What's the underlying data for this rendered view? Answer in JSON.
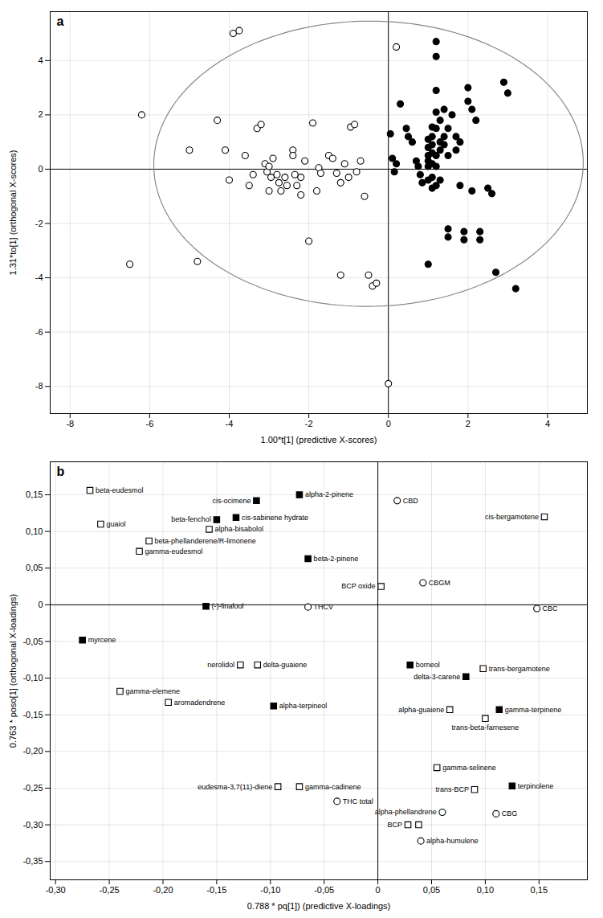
{
  "chart_data": [
    {
      "type": "scatter",
      "title": "a",
      "xlabel": "1.00*t[1] (predictive X-scores)",
      "ylabel": "1.31*to[1] (orthogonal X-scores)",
      "xlim": [
        -8.5,
        5.0
      ],
      "ylim": [
        -9.0,
        5.8
      ],
      "xticks": [
        -8,
        -6,
        -4,
        -2,
        0,
        2,
        4
      ],
      "yticks": [
        -8,
        -6,
        -4,
        -2,
        0,
        2,
        4
      ],
      "grid": true,
      "ellipse": {
        "cx": -0.5,
        "cy": 0.2,
        "width": 10.8,
        "height": 10.5,
        "angle": 8,
        "color": "#888888"
      },
      "series": [
        {
          "marker": "open_circle",
          "color": "black",
          "points": [
            [
              -6.5,
              -3.5
            ],
            [
              -6.2,
              2.0
            ],
            [
              -5.0,
              0.7
            ],
            [
              -4.8,
              -3.4
            ],
            [
              -4.3,
              1.8
            ],
            [
              -4.1,
              0.7
            ],
            [
              -4.0,
              -0.4
            ],
            [
              -3.9,
              5.0
            ],
            [
              -3.75,
              5.1
            ],
            [
              -3.6,
              0.5
            ],
            [
              -3.5,
              -0.6
            ],
            [
              -3.4,
              -0.2
            ],
            [
              -3.3,
              1.5
            ],
            [
              -3.2,
              1.65
            ],
            [
              -3.1,
              0.2
            ],
            [
              -3.05,
              -0.1
            ],
            [
              -3.0,
              -0.8
            ],
            [
              -3.0,
              0.1
            ],
            [
              -2.95,
              -0.3
            ],
            [
              -2.9,
              0.4
            ],
            [
              -2.8,
              -0.2
            ],
            [
              -2.75,
              -0.5
            ],
            [
              -2.7,
              -0.8
            ],
            [
              -2.6,
              -0.3
            ],
            [
              -2.55,
              -0.6
            ],
            [
              -2.4,
              0.7
            ],
            [
              -2.4,
              0.5
            ],
            [
              -2.35,
              -0.2
            ],
            [
              -2.3,
              -0.6
            ],
            [
              -2.2,
              -0.3
            ],
            [
              -2.2,
              -0.95
            ],
            [
              -2.1,
              0.3
            ],
            [
              -2.0,
              -2.65
            ],
            [
              -1.9,
              1.7
            ],
            [
              -1.8,
              -0.8
            ],
            [
              -1.75,
              0.05
            ],
            [
              -1.7,
              -0.15
            ],
            [
              -1.5,
              0.5
            ],
            [
              -1.4,
              0.4
            ],
            [
              -1.3,
              -0.15
            ],
            [
              -1.2,
              -0.5
            ],
            [
              -1.2,
              -3.9
            ],
            [
              -1.1,
              0.2
            ],
            [
              -1.0,
              -0.3
            ],
            [
              -0.95,
              1.55
            ],
            [
              -0.85,
              1.65
            ],
            [
              -0.8,
              -0.1
            ],
            [
              -0.7,
              0.3
            ],
            [
              -0.6,
              -1.0
            ],
            [
              -0.5,
              -3.9
            ],
            [
              -0.4,
              -4.3
            ],
            [
              -0.3,
              -4.2
            ],
            [
              0.0,
              -7.9
            ],
            [
              0.2,
              4.5
            ]
          ]
        },
        {
          "marker": "filled_circle",
          "color": "black",
          "points": [
            [
              0.05,
              1.3
            ],
            [
              0.1,
              0.4
            ],
            [
              0.15,
              -0.1
            ],
            [
              0.2,
              0.2
            ],
            [
              0.3,
              2.4
            ],
            [
              0.45,
              1.5
            ],
            [
              0.5,
              1.2
            ],
            [
              0.6,
              1.0
            ],
            [
              0.7,
              0.3
            ],
            [
              0.75,
              0.1
            ],
            [
              0.8,
              -0.2
            ],
            [
              0.85,
              -0.5
            ],
            [
              1.0,
              1.1
            ],
            [
              1.0,
              0.8
            ],
            [
              1.0,
              0.5
            ],
            [
              1.0,
              0.3
            ],
            [
              1.0,
              0.1
            ],
            [
              1.0,
              -0.4
            ],
            [
              1.0,
              -3.5
            ],
            [
              1.1,
              1.55
            ],
            [
              1.1,
              1.2
            ],
            [
              1.1,
              0.9
            ],
            [
              1.1,
              0.6
            ],
            [
              1.1,
              0.2
            ],
            [
              1.1,
              -0.3
            ],
            [
              1.1,
              -0.7
            ],
            [
              1.2,
              4.7
            ],
            [
              1.2,
              4.15
            ],
            [
              1.2,
              2.9
            ],
            [
              1.2,
              2.1
            ],
            [
              1.2,
              1.5
            ],
            [
              1.2,
              0.5
            ],
            [
              1.2,
              0.1
            ],
            [
              1.2,
              -0.6
            ],
            [
              1.3,
              1.8
            ],
            [
              1.3,
              1.0
            ],
            [
              1.3,
              0.7
            ],
            [
              1.3,
              -0.4
            ],
            [
              1.4,
              2.2
            ],
            [
              1.4,
              1.2
            ],
            [
              1.4,
              0.9
            ],
            [
              1.5,
              1.5
            ],
            [
              1.5,
              0.5
            ],
            [
              1.5,
              -2.2
            ],
            [
              1.5,
              -2.5
            ],
            [
              1.6,
              2.0
            ],
            [
              1.7,
              1.2
            ],
            [
              1.7,
              0.7
            ],
            [
              1.8,
              1.0
            ],
            [
              1.8,
              -0.6
            ],
            [
              1.9,
              -2.3
            ],
            [
              1.9,
              -2.6
            ],
            [
              2.0,
              3.0
            ],
            [
              2.0,
              2.5
            ],
            [
              2.1,
              2.2
            ],
            [
              2.1,
              -0.8
            ],
            [
              2.2,
              1.8
            ],
            [
              2.3,
              -2.3
            ],
            [
              2.3,
              -2.6
            ],
            [
              2.5,
              -0.7
            ],
            [
              2.6,
              -0.9
            ],
            [
              2.7,
              -3.8
            ],
            [
              2.9,
              3.2
            ],
            [
              3.0,
              2.8
            ],
            [
              3.2,
              -4.4
            ]
          ]
        }
      ]
    },
    {
      "type": "scatter",
      "title": "b",
      "xlabel": "0.788 * pq[1]) (predictive X-loadings)",
      "ylabel": "0.763 * poso[1] (orthogonal X-loadings)",
      "xlim": [
        -0.305,
        0.195
      ],
      "ylim": [
        -0.375,
        0.195
      ],
      "xticks": [
        {
          "value": -0.3,
          "label": "-0,30"
        },
        {
          "value": -0.25,
          "label": "-0,25"
        },
        {
          "value": -0.2,
          "label": "-0,20"
        },
        {
          "value": -0.15,
          "label": "-0,15"
        },
        {
          "value": -0.1,
          "label": "-0,10"
        },
        {
          "value": -0.05,
          "label": "-0,05"
        },
        0,
        {
          "value": 0.05,
          "label": "0,05"
        },
        {
          "value": 0.1,
          "label": "0,10"
        },
        {
          "value": 0.15,
          "label": "0,15"
        }
      ],
      "yticks": [
        {
          "value": -0.35,
          "label": "-0,35"
        },
        {
          "value": -0.3,
          "label": "-0,30"
        },
        {
          "value": -0.25,
          "label": "-0,25"
        },
        {
          "value": -0.2,
          "label": "-0,20"
        },
        {
          "value": -0.15,
          "label": "-0,15"
        },
        {
          "value": -0.1,
          "label": "-0,10"
        },
        {
          "value": -0.05,
          "label": "-0,05"
        },
        0,
        {
          "value": 0.05,
          "label": "0,05"
        },
        {
          "value": 0.1,
          "label": "0,10"
        },
        {
          "value": 0.15,
          "label": "0,15"
        }
      ],
      "grid": true,
      "series": [
        {
          "marker": "filled_square",
          "color": "black",
          "points": [
            {
              "x": -0.275,
              "y": -0.048,
              "label": "myrcene"
            },
            {
              "x": -0.16,
              "y": -0.002,
              "label": "(-)-linalool"
            },
            {
              "x": -0.15,
              "y": 0.116,
              "label": "beta-fenchol"
            },
            {
              "x": -0.132,
              "y": 0.119,
              "label": "cis-sabinene hydrate"
            },
            {
              "x": -0.073,
              "y": 0.15,
              "label": "alpha-2-pinene"
            },
            {
              "x": -0.065,
              "y": 0.063,
              "label": "beta-2-pinene"
            },
            {
              "x": -0.113,
              "y": 0.142,
              "label": "cis-ocimene"
            },
            {
              "x": -0.097,
              "y": -0.138,
              "label": "alpha-terpineol"
            },
            {
              "x": 0.03,
              "y": -0.082,
              "label": "borneol"
            },
            {
              "x": 0.082,
              "y": -0.098,
              "label": "delta-3-carene"
            },
            {
              "x": 0.113,
              "y": -0.143,
              "label": "gamma-terpinene"
            },
            {
              "x": 0.125,
              "y": -0.247,
              "label": "terpinolene"
            }
          ]
        },
        {
          "marker": "open_square",
          "color": "black",
          "points": [
            {
              "x": -0.268,
              "y": 0.156,
              "label": "beta-eudesmol"
            },
            {
              "x": -0.258,
              "y": 0.11,
              "label": "guaiol"
            },
            {
              "x": -0.24,
              "y": -0.118,
              "label": "gamma-elemene"
            },
            {
              "x": -0.222,
              "y": 0.073,
              "label": "gamma-eudesmol"
            },
            {
              "x": -0.213,
              "y": 0.087,
              "label": "beta-phellanderene/R-limonene"
            },
            {
              "x": -0.157,
              "y": 0.103,
              "label": "alpha-bisabolol"
            },
            {
              "x": -0.195,
              "y": -0.133,
              "label": "aromadendrene"
            },
            {
              "x": -0.128,
              "y": -0.082,
              "label": "nerolidol"
            },
            {
              "x": -0.112,
              "y": -0.082,
              "label": "delta-guaiene"
            },
            {
              "x": -0.093,
              "y": -0.248,
              "label": "eudesma-3,7(11)-diene"
            },
            {
              "x": -0.073,
              "y": -0.248,
              "label": "gamma-cadinene"
            },
            {
              "x": 0.003,
              "y": 0.025,
              "label": "BCP oxide"
            },
            {
              "x": 0.028,
              "y": -0.3,
              "label": "BCP"
            },
            {
              "x": 0.038,
              "y": -0.3
            },
            {
              "x": 0.055,
              "y": -0.222,
              "label": "gamma-selinene"
            },
            {
              "x": 0.067,
              "y": -0.143,
              "label": "alpha-guaiene"
            },
            {
              "x": 0.098,
              "y": -0.087,
              "label": "trans-bergamotene"
            },
            {
              "x": 0.1,
              "y": -0.155,
              "label": "trans-beta-farnesene"
            },
            {
              "x": 0.09,
              "y": -0.252,
              "label": "trans-BCP"
            },
            {
              "x": 0.155,
              "y": 0.12,
              "label": "cis-bergamotene"
            }
          ]
        },
        {
          "marker": "open_circle",
          "color": "black",
          "points": [
            {
              "x": 0.018,
              "y": 0.142,
              "label": "CBD"
            },
            {
              "x": 0.042,
              "y": 0.03,
              "label": "CBGM"
            },
            {
              "x": 0.148,
              "y": -0.005,
              "label": "CBC"
            },
            {
              "x": -0.065,
              "y": -0.003,
              "label": "THCV"
            },
            {
              "x": -0.038,
              "y": -0.268,
              "label": "THC total"
            },
            {
              "x": 0.11,
              "y": -0.285,
              "label": "CBG"
            },
            {
              "x": 0.06,
              "y": -0.283,
              "label": "alpha-phellandrene"
            },
            {
              "x": 0.04,
              "y": -0.322,
              "label": "alpha-humulene"
            }
          ]
        }
      ]
    }
  ]
}
